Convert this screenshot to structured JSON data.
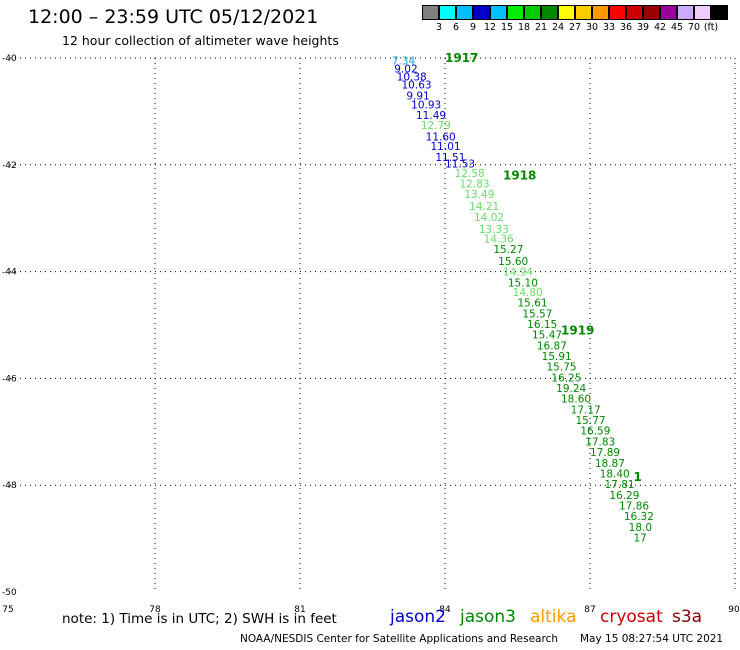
{
  "header": {
    "title": "12:00 – 23:59 UTC 05/12/2021",
    "subtitle": "12 hour collection of altimeter wave heights"
  },
  "colorbar": {
    "colors": [
      "#808080",
      "#00ffff",
      "#00bfff",
      "#0000cd",
      "#00c0ff",
      "#00ee00",
      "#00cc00",
      "#008800",
      "#ffff00",
      "#ffcc00",
      "#ff9900",
      "#ff0000",
      "#cc0000",
      "#990000",
      "#990099",
      "#ccaaff",
      "#eeccff",
      "#000000"
    ],
    "ticks": [
      "3",
      "6",
      "9",
      "12",
      "15",
      "18",
      "21",
      "24",
      "27",
      "30",
      "33",
      "36",
      "39",
      "42",
      "45",
      "70",
      "(ft)"
    ]
  },
  "chart_data": {
    "type": "scatter",
    "xlim": [
      75,
      90
    ],
    "ylim": [
      -50,
      -40
    ],
    "x_ticks": [
      "75",
      "78",
      "81",
      "84",
      "87",
      "90"
    ],
    "y_ticks": [
      "-40",
      "-42",
      "-44",
      "-46",
      "-48",
      "-50"
    ],
    "grid": true,
    "series": [
      {
        "name": "jason2",
        "color": "#0000cd",
        "points": [
          {
            "x": 82.9,
            "y": -40.05,
            "label": "7.34",
            "color": "#19a8e8"
          },
          {
            "x": 82.95,
            "y": -40.2,
            "label": "9.02"
          },
          {
            "x": 83.0,
            "y": -40.35,
            "label": "10.38"
          },
          {
            "x": 83.1,
            "y": -40.5,
            "label": "10.63"
          },
          {
            "x": 83.2,
            "y": -40.7,
            "label": "9.91"
          },
          {
            "x": 83.3,
            "y": -40.87,
            "label": "10.93"
          },
          {
            "x": 83.4,
            "y": -41.07,
            "label": "11.49"
          },
          {
            "x": 83.6,
            "y": -41.47,
            "label": "11.60"
          },
          {
            "x": 83.7,
            "y": -41.65,
            "label": "11.01"
          },
          {
            "x": 83.8,
            "y": -41.85,
            "label": "11.51"
          },
          {
            "x": 84.0,
            "y": -41.98,
            "label": "11.53"
          }
        ]
      },
      {
        "name": "jason3",
        "color": "#008800",
        "points": [
          {
            "x": 83.5,
            "y": -41.25,
            "label": "12.79",
            "color": "#66dd66"
          },
          {
            "x": 84.2,
            "y": -42.15,
            "label": "12.58",
            "color": "#66dd66"
          },
          {
            "x": 84.3,
            "y": -42.35,
            "label": "12.83",
            "color": "#66dd66"
          },
          {
            "x": 84.4,
            "y": -42.55,
            "label": "13.49",
            "color": "#66dd66"
          },
          {
            "x": 84.5,
            "y": -42.77,
            "label": "14.21",
            "color": "#66dd66"
          },
          {
            "x": 84.6,
            "y": -42.98,
            "label": "14.02",
            "color": "#66dd66"
          },
          {
            "x": 84.7,
            "y": -43.2,
            "label": "13.33",
            "color": "#66dd66"
          },
          {
            "x": 84.8,
            "y": -43.38,
            "label": "14.36",
            "color": "#66dd66"
          },
          {
            "x": 85.0,
            "y": -43.58,
            "label": "15.27"
          },
          {
            "x": 85.1,
            "y": -43.8,
            "label": "15.60"
          },
          {
            "x": 85.2,
            "y": -44.0,
            "label": "14.94",
            "color": "#66dd66"
          },
          {
            "x": 85.3,
            "y": -44.2,
            "label": "15.10"
          },
          {
            "x": 85.4,
            "y": -44.38,
            "label": "14.80",
            "color": "#66dd66"
          },
          {
            "x": 85.5,
            "y": -44.58,
            "label": "15.61"
          },
          {
            "x": 85.6,
            "y": -44.78,
            "label": "15.57"
          },
          {
            "x": 85.7,
            "y": -44.98,
            "label": "16.15"
          },
          {
            "x": 85.8,
            "y": -45.18,
            "label": "15.47"
          },
          {
            "x": 85.9,
            "y": -45.38,
            "label": "16.87"
          },
          {
            "x": 86.0,
            "y": -45.58,
            "label": "15.91"
          },
          {
            "x": 86.1,
            "y": -45.78,
            "label": "15.75"
          },
          {
            "x": 86.2,
            "y": -45.98,
            "label": "16.25"
          },
          {
            "x": 86.3,
            "y": -46.18,
            "label": "19.24"
          },
          {
            "x": 86.4,
            "y": -46.38,
            "label": "18.60"
          },
          {
            "x": 86.6,
            "y": -46.58,
            "label": "17.17"
          },
          {
            "x": 86.7,
            "y": -46.78,
            "label": "15.77"
          },
          {
            "x": 86.8,
            "y": -46.98,
            "label": "16.59"
          },
          {
            "x": 86.9,
            "y": -47.18,
            "label": "17.83"
          },
          {
            "x": 87.0,
            "y": -47.38,
            "label": "17.89"
          },
          {
            "x": 87.1,
            "y": -47.58,
            "label": "18.87"
          },
          {
            "x": 87.2,
            "y": -47.78,
            "label": "18.40"
          },
          {
            "x": 87.3,
            "y": -47.98,
            "label": "17.81"
          },
          {
            "x": 87.4,
            "y": -48.18,
            "label": "16.29"
          },
          {
            "x": 87.6,
            "y": -48.38,
            "label": "17.86"
          },
          {
            "x": 87.7,
            "y": -48.58,
            "label": "16.32"
          },
          {
            "x": 87.8,
            "y": -48.78,
            "label": "18.0"
          },
          {
            "x": 87.9,
            "y": -48.98,
            "label": "17"
          }
        ]
      }
    ],
    "time_labels": [
      {
        "x": 84.0,
        "y": -40.0,
        "label": "1917"
      },
      {
        "x": 85.2,
        "y": -42.2,
        "label": "1918"
      },
      {
        "x": 86.4,
        "y": -45.1,
        "label": "1919"
      },
      {
        "x": 87.9,
        "y": -47.85,
        "label": "1"
      }
    ]
  },
  "notes": {
    "note": "note:  1) Time is in UTC; 2) SWH is in feet"
  },
  "satellites": [
    {
      "name": "jason2",
      "color": "#0000cc"
    },
    {
      "name": "jason3",
      "color": "#008800"
    },
    {
      "name": "altika",
      "color": "#ff9900"
    },
    {
      "name": "cryosat",
      "color": "#cc0000"
    },
    {
      "name": "s3a",
      "color": "#880000"
    }
  ],
  "footer": {
    "credit": "NOAA/NESDIS Center for Satellite Applications and Research",
    "timestamp": "May 15 08:27:54 UTC 2021"
  }
}
